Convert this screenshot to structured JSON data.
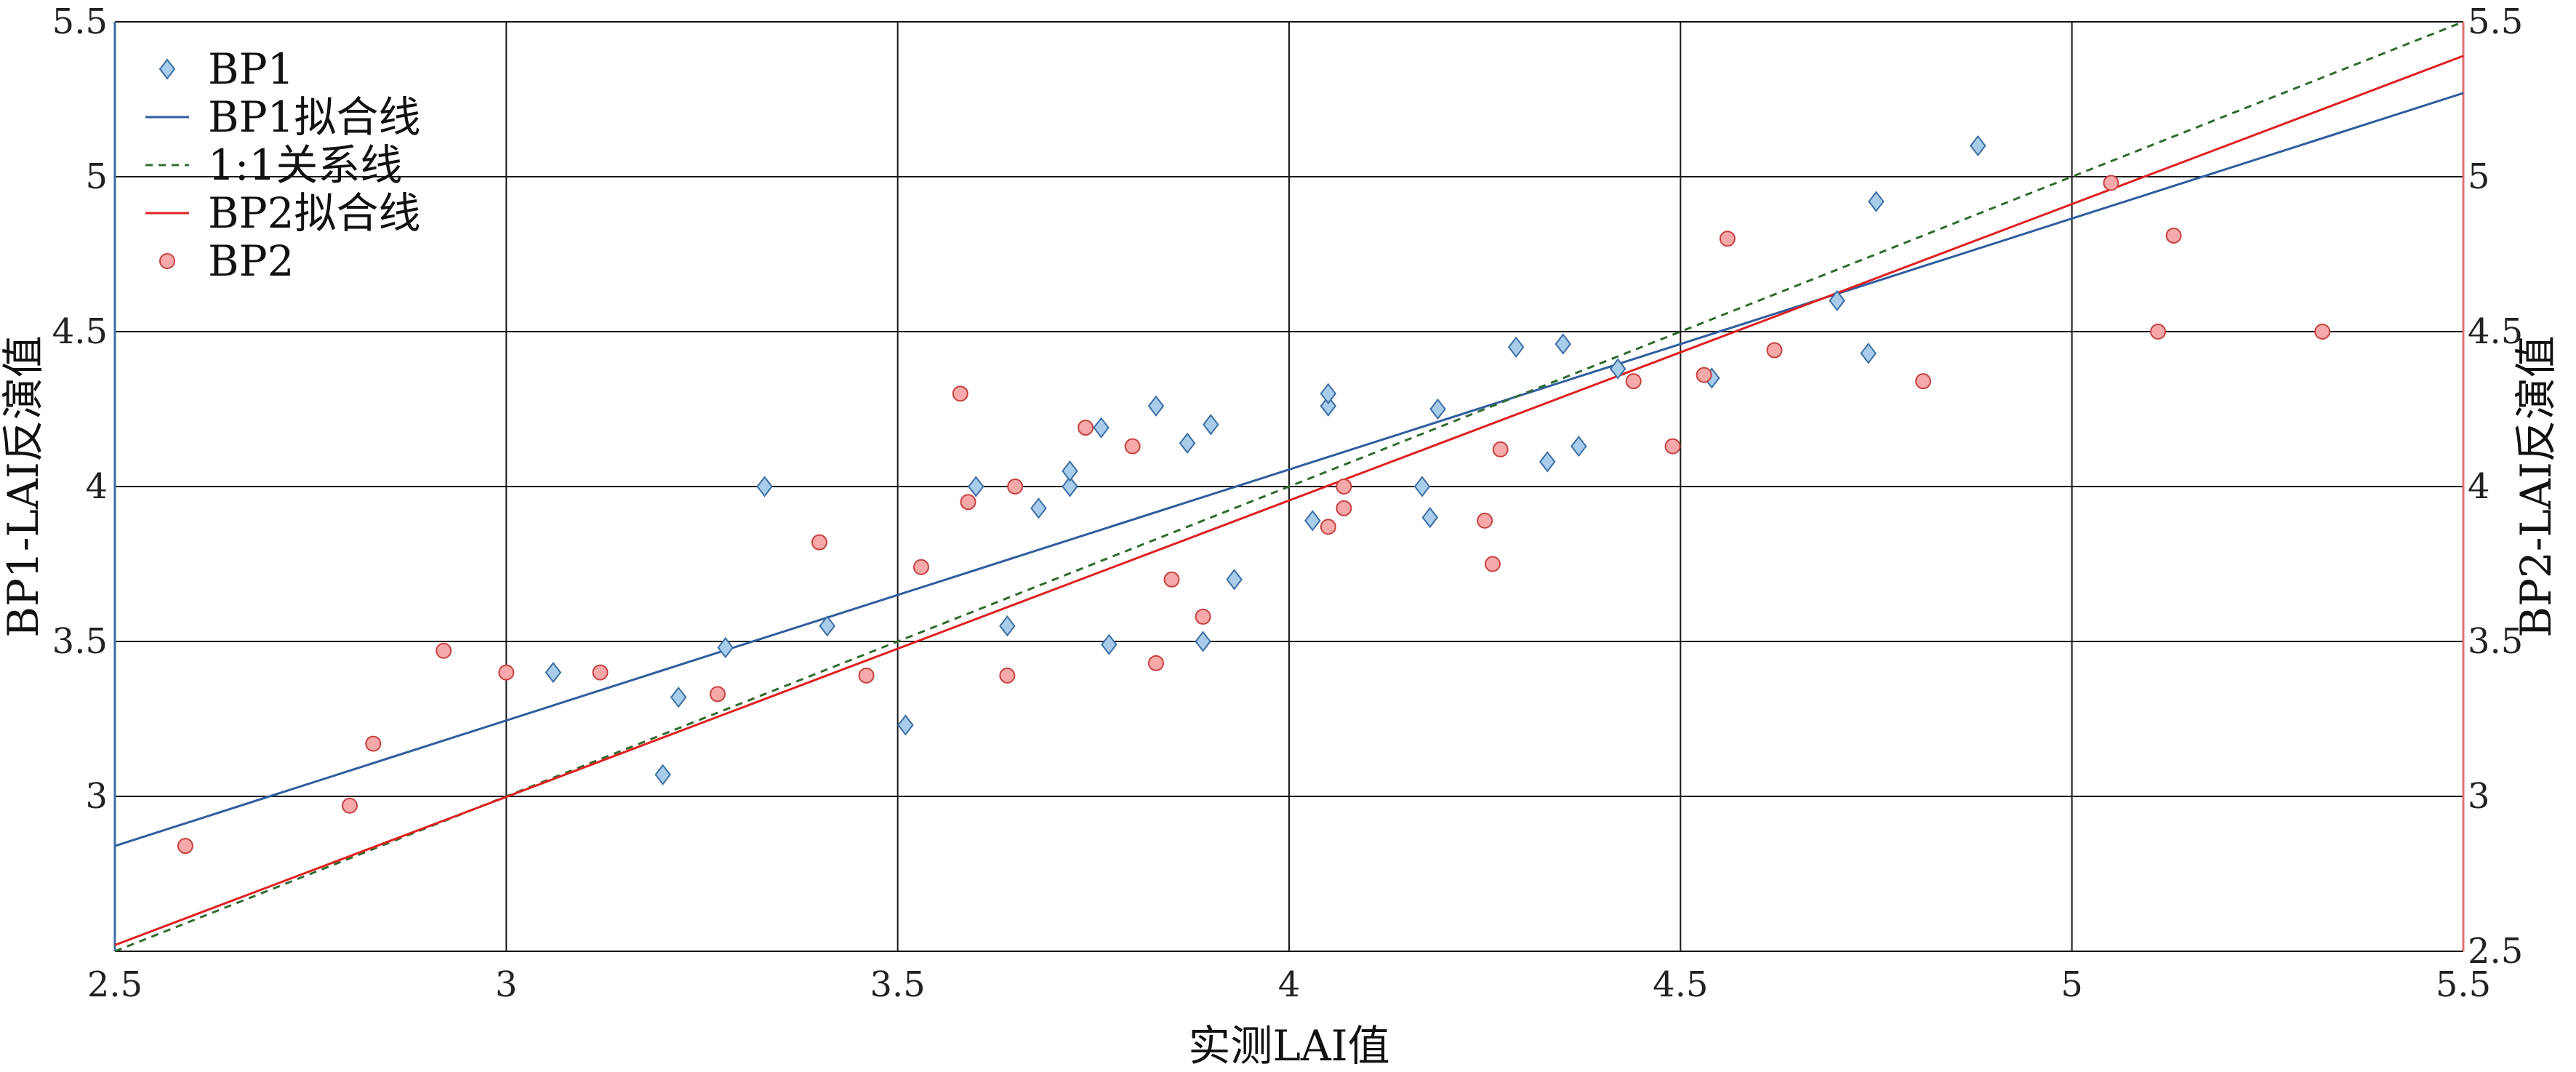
{
  "chart_data": {
    "type": "scatter",
    "xlabel": "实测LAI值",
    "ylabel_left": "BP1-LAI反演值",
    "ylabel_right": "BP2-LAI反演值",
    "xlim": [
      2.5,
      5.5
    ],
    "ylim": [
      2.5,
      5.5
    ],
    "grid": true,
    "legend_position": "top-left",
    "x_ticks": [
      {
        "v": 2.5,
        "label": "2.5"
      },
      {
        "v": 3,
        "label": "3"
      },
      {
        "v": 3.5,
        "label": "3.5"
      },
      {
        "v": 4,
        "label": "4"
      },
      {
        "v": 4.5,
        "label": "4.5"
      },
      {
        "v": 5,
        "label": "5"
      },
      {
        "v": 5.5,
        "label": "5.5"
      }
    ],
    "y_ticks_left": [
      {
        "v": 3,
        "label": "3"
      },
      {
        "v": 3.5,
        "label": "3.5"
      },
      {
        "v": 4,
        "label": "4"
      },
      {
        "v": 4.5,
        "label": "4.5"
      },
      {
        "v": 5,
        "label": "5"
      },
      {
        "v": 5.5,
        "label": "5.5"
      }
    ],
    "y_ticks_right": [
      {
        "v": 2.5,
        "label": "2.5"
      },
      {
        "v": 3,
        "label": "3"
      },
      {
        "v": 3.5,
        "label": "3.5"
      },
      {
        "v": 4,
        "label": "4"
      },
      {
        "v": 4.5,
        "label": "4.5"
      },
      {
        "v": 5,
        "label": "5"
      },
      {
        "v": 5.5,
        "label": "5.5"
      }
    ],
    "series": [
      {
        "name": "BP1",
        "kind": "scatter",
        "marker": "diamond",
        "fill": "#a8cdea",
        "stroke": "#3b6ea5",
        "points": [
          [
            3.06,
            3.4
          ],
          [
            3.2,
            3.07
          ],
          [
            3.22,
            3.32
          ],
          [
            3.28,
            3.48
          ],
          [
            3.33,
            4.0
          ],
          [
            3.41,
            3.55
          ],
          [
            3.51,
            3.23
          ],
          [
            3.6,
            4.0
          ],
          [
            3.64,
            3.55
          ],
          [
            3.68,
            3.93
          ],
          [
            3.72,
            4.0
          ],
          [
            3.72,
            4.05
          ],
          [
            3.76,
            4.19
          ],
          [
            3.77,
            3.49
          ],
          [
            3.83,
            4.26
          ],
          [
            3.87,
            4.14
          ],
          [
            3.89,
            3.5
          ],
          [
            3.9,
            4.2
          ],
          [
            3.93,
            3.7
          ],
          [
            4.03,
            3.89
          ],
          [
            4.05,
            4.26
          ],
          [
            4.05,
            4.3
          ],
          [
            4.17,
            4.0
          ],
          [
            4.18,
            3.9
          ],
          [
            4.19,
            4.25
          ],
          [
            4.29,
            4.45
          ],
          [
            4.33,
            4.08
          ],
          [
            4.35,
            4.46
          ],
          [
            4.37,
            4.13
          ],
          [
            4.42,
            4.38
          ],
          [
            4.54,
            4.35
          ],
          [
            4.7,
            4.6
          ],
          [
            4.74,
            4.43
          ],
          [
            4.75,
            4.92
          ],
          [
            4.88,
            5.1
          ]
        ]
      },
      {
        "name": "BP1拟合线",
        "kind": "line",
        "color": "#2f5d9e",
        "dash": "none",
        "from": [
          2.5,
          2.84
        ],
        "to": [
          5.5,
          5.27
        ]
      },
      {
        "name": "1:1关系线",
        "kind": "line",
        "color": "#2e6b2e",
        "dash": "10,8",
        "from": [
          2.5,
          2.5
        ],
        "to": [
          5.5,
          5.5
        ]
      },
      {
        "name": "BP2拟合线",
        "kind": "line",
        "color": "#e02020",
        "dash": "none",
        "from": [
          2.5,
          2.52
        ],
        "to": [
          5.5,
          5.39
        ]
      },
      {
        "name": "BP2",
        "kind": "scatter",
        "marker": "circle",
        "fill": "#f7a9a9",
        "stroke": "#c84040",
        "points": [
          [
            2.59,
            2.84
          ],
          [
            2.8,
            2.97
          ],
          [
            2.83,
            3.17
          ],
          [
            2.92,
            3.47
          ],
          [
            3.0,
            3.4
          ],
          [
            3.12,
            3.4
          ],
          [
            3.27,
            3.33
          ],
          [
            3.4,
            3.82
          ],
          [
            3.46,
            3.39
          ],
          [
            3.53,
            3.74
          ],
          [
            3.58,
            4.3
          ],
          [
            3.59,
            3.95
          ],
          [
            3.64,
            3.39
          ],
          [
            3.65,
            4.0
          ],
          [
            3.74,
            4.19
          ],
          [
            3.8,
            4.13
          ],
          [
            3.83,
            3.43
          ],
          [
            3.85,
            3.7
          ],
          [
            3.89,
            3.58
          ],
          [
            4.05,
            3.87
          ],
          [
            4.07,
            4.0
          ],
          [
            4.07,
            3.93
          ],
          [
            4.25,
            3.89
          ],
          [
            4.26,
            3.75
          ],
          [
            4.27,
            4.12
          ],
          [
            4.44,
            4.34
          ],
          [
            4.49,
            4.13
          ],
          [
            4.53,
            4.36
          ],
          [
            4.56,
            4.8
          ],
          [
            4.62,
            4.44
          ],
          [
            4.81,
            4.34
          ],
          [
            5.05,
            4.98
          ],
          [
            5.11,
            4.5
          ],
          [
            5.13,
            4.81
          ],
          [
            5.32,
            4.5
          ]
        ]
      }
    ]
  },
  "colors": {
    "left_axis": "#3b6ea5",
    "right_axis": "#e07070",
    "grid": "#1a1a1a"
  }
}
